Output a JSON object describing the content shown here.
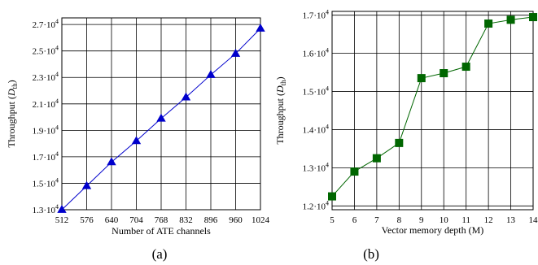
{
  "chart_data": [
    {
      "type": "line",
      "caption": "(a)",
      "xlabel": "Number of ATE channels",
      "ylabel": {
        "prefix": "Throughput (",
        "var": "D",
        "sub": "th",
        "suffix": ")"
      },
      "x": [
        512,
        576,
        640,
        704,
        768,
        832,
        896,
        960,
        1024
      ],
      "xticks": [
        "512",
        "576",
        "640",
        "704",
        "768",
        "832",
        "896",
        "960",
        "1024"
      ],
      "xlim": [
        512,
        1024
      ],
      "ylim": [
        13000,
        27500
      ],
      "yticks": [
        {
          "value": 13000,
          "mant": "1.3·10",
          "exp": "4"
        },
        {
          "value": 15000,
          "mant": "1.5·10",
          "exp": "4"
        },
        {
          "value": 17000,
          "mant": "1.7·10",
          "exp": "4"
        },
        {
          "value": 19000,
          "mant": "1.9·10",
          "exp": "4"
        },
        {
          "value": 21000,
          "mant": "2.1·10",
          "exp": "4"
        },
        {
          "value": 23000,
          "mant": "2.3·10",
          "exp": "4"
        },
        {
          "value": 25000,
          "mant": "2.5·10",
          "exp": "4"
        },
        {
          "value": 27000,
          "mant": "2.7·10",
          "exp": "4"
        }
      ],
      "grid": true,
      "series": [
        {
          "values": [
            13000,
            14800,
            16600,
            18200,
            19900,
            21500,
            23200,
            24800,
            26700
          ],
          "color": "#0000cc",
          "marker": "triangle"
        }
      ]
    },
    {
      "type": "line",
      "caption": "(b)",
      "xlabel": "Vector memory depth (M)",
      "ylabel": {
        "prefix": "Throughput (",
        "var": "D",
        "sub": "th",
        "suffix": ")"
      },
      "x": [
        5,
        6,
        7,
        8,
        9,
        10,
        11,
        12,
        13,
        14
      ],
      "xticks": [
        "5",
        "6",
        "7",
        "8",
        "9",
        "10",
        "11",
        "12",
        "13",
        "14"
      ],
      "xlim": [
        5,
        14
      ],
      "ylim": [
        11900,
        17100
      ],
      "yticks": [
        {
          "value": 12000,
          "mant": "1.2·10",
          "exp": "4"
        },
        {
          "value": 13000,
          "mant": "1.3·10",
          "exp": "4"
        },
        {
          "value": 14000,
          "mant": "1.4·10",
          "exp": "4"
        },
        {
          "value": 15000,
          "mant": "1.5·10",
          "exp": "4"
        },
        {
          "value": 16000,
          "mant": "1.6·10",
          "exp": "4"
        },
        {
          "value": 17000,
          "mant": "1.7·10",
          "exp": "4"
        }
      ],
      "grid": true,
      "series": [
        {
          "values": [
            12250,
            12900,
            13250,
            13650,
            15350,
            15480,
            15650,
            16780,
            16880,
            16950
          ],
          "color": "#006600",
          "marker": "square"
        }
      ]
    }
  ]
}
